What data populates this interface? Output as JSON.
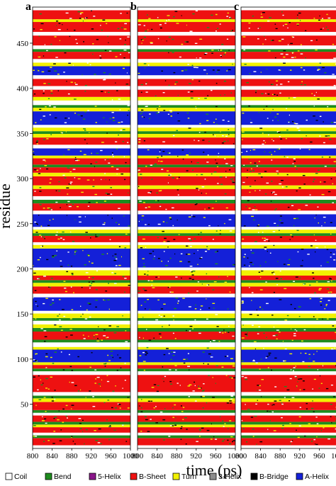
{
  "chart_data": {
    "type": "heatmap",
    "title": "",
    "xlabel": "time (ps)",
    "ylabel": "residue",
    "x_range": [
      800,
      1000
    ],
    "y_range": [
      1,
      490
    ],
    "x_ticks": [
      800,
      840,
      880,
      920,
      960,
      1000
    ],
    "y_ticks": [
      50,
      100,
      150,
      200,
      250,
      300,
      350,
      400,
      450
    ],
    "panels": [
      "a",
      "b",
      "c"
    ],
    "legend_position": "bottom",
    "legend": [
      {
        "name": "Coil",
        "color": "#ffffff"
      },
      {
        "name": "Bend",
        "color": "#1e8c1e"
      },
      {
        "name": "5-Helix",
        "color": "#8a168a"
      },
      {
        "name": "B-Sheet",
        "color": "#ee1111"
      },
      {
        "name": "Turn",
        "color": "#f2f200"
      },
      {
        "name": "3-Helix",
        "color": "#8c8c8c"
      },
      {
        "name": "B-Bridge",
        "color": "#000000"
      },
      {
        "name": "A-Helix",
        "color": "#1420d8"
      }
    ],
    "segments": [
      {
        "start": 1,
        "end": 4,
        "state": "Coil"
      },
      {
        "start": 5,
        "end": 12,
        "state": "B-Sheet"
      },
      {
        "start": 13,
        "end": 15,
        "state": "Bend"
      },
      {
        "start": 16,
        "end": 18,
        "state": "Coil"
      },
      {
        "start": 19,
        "end": 24,
        "state": "B-Sheet"
      },
      {
        "start": 25,
        "end": 27,
        "state": "Turn"
      },
      {
        "start": 28,
        "end": 30,
        "state": "Bend"
      },
      {
        "start": 31,
        "end": 37,
        "state": "B-Sheet"
      },
      {
        "start": 38,
        "end": 40,
        "state": "Coil"
      },
      {
        "start": 41,
        "end": 43,
        "state": "Bend"
      },
      {
        "start": 44,
        "end": 52,
        "state": "B-Sheet"
      },
      {
        "start": 53,
        "end": 56,
        "state": "Turn"
      },
      {
        "start": 57,
        "end": 59,
        "state": "Bend"
      },
      {
        "start": 60,
        "end": 63,
        "state": "Coil"
      },
      {
        "start": 64,
        "end": 82,
        "state": "B-Sheet"
      },
      {
        "start": 83,
        "end": 86,
        "state": "Coil"
      },
      {
        "start": 87,
        "end": 89,
        "state": "Bend"
      },
      {
        "start": 90,
        "end": 93,
        "state": "B-Sheet"
      },
      {
        "start": 94,
        "end": 96,
        "state": "Turn"
      },
      {
        "start": 97,
        "end": 110,
        "state": "A-Helix"
      },
      {
        "start": 111,
        "end": 113,
        "state": "Turn"
      },
      {
        "start": 114,
        "end": 118,
        "state": "Coil"
      },
      {
        "start": 119,
        "end": 121,
        "state": "Bend"
      },
      {
        "start": 122,
        "end": 130,
        "state": "B-Sheet"
      },
      {
        "start": 131,
        "end": 134,
        "state": "Bend"
      },
      {
        "start": 135,
        "end": 138,
        "state": "Turn"
      },
      {
        "start": 139,
        "end": 142,
        "state": "Coil"
      },
      {
        "start": 143,
        "end": 145,
        "state": "Bend"
      },
      {
        "start": 146,
        "end": 150,
        "state": "Turn"
      },
      {
        "start": 151,
        "end": 153,
        "state": "Coil"
      },
      {
        "start": 154,
        "end": 168,
        "state": "A-Helix"
      },
      {
        "start": 169,
        "end": 172,
        "state": "Coil"
      },
      {
        "start": 173,
        "end": 180,
        "state": "B-Sheet"
      },
      {
        "start": 181,
        "end": 184,
        "state": "Turn"
      },
      {
        "start": 185,
        "end": 187,
        "state": "Bend"
      },
      {
        "start": 188,
        "end": 192,
        "state": "B-Sheet"
      },
      {
        "start": 193,
        "end": 198,
        "state": "Turn"
      },
      {
        "start": 199,
        "end": 201,
        "state": "Coil"
      },
      {
        "start": 202,
        "end": 222,
        "state": "A-Helix"
      },
      {
        "start": 223,
        "end": 226,
        "state": "Turn"
      },
      {
        "start": 227,
        "end": 229,
        "state": "Coil"
      },
      {
        "start": 230,
        "end": 236,
        "state": "B-Sheet"
      },
      {
        "start": 237,
        "end": 239,
        "state": "Bend"
      },
      {
        "start": 240,
        "end": 243,
        "state": "Turn"
      },
      {
        "start": 244,
        "end": 246,
        "state": "Coil"
      },
      {
        "start": 247,
        "end": 260,
        "state": "A-Helix"
      },
      {
        "start": 261,
        "end": 264,
        "state": "Coil"
      },
      {
        "start": 265,
        "end": 272,
        "state": "B-Sheet"
      },
      {
        "start": 273,
        "end": 276,
        "state": "Bend"
      },
      {
        "start": 277,
        "end": 280,
        "state": "Coil"
      },
      {
        "start": 281,
        "end": 288,
        "state": "B-Sheet"
      },
      {
        "start": 289,
        "end": 292,
        "state": "Turn"
      },
      {
        "start": 293,
        "end": 302,
        "state": "B-Sheet"
      },
      {
        "start": 303,
        "end": 306,
        "state": "Turn"
      },
      {
        "start": 307,
        "end": 312,
        "state": "B-Sheet"
      },
      {
        "start": 313,
        "end": 315,
        "state": "Bend"
      },
      {
        "start": 316,
        "end": 322,
        "state": "B-Sheet"
      },
      {
        "start": 323,
        "end": 325,
        "state": "Turn"
      },
      {
        "start": 326,
        "end": 333,
        "state": "A-Helix"
      },
      {
        "start": 334,
        "end": 337,
        "state": "Coil"
      },
      {
        "start": 338,
        "end": 345,
        "state": "B-Sheet"
      },
      {
        "start": 346,
        "end": 349,
        "state": "Turn"
      },
      {
        "start": 350,
        "end": 352,
        "state": "Bend"
      },
      {
        "start": 353,
        "end": 356,
        "state": "Turn"
      },
      {
        "start": 357,
        "end": 359,
        "state": "Coil"
      },
      {
        "start": 360,
        "end": 374,
        "state": "A-Helix"
      },
      {
        "start": 375,
        "end": 378,
        "state": "Turn"
      },
      {
        "start": 379,
        "end": 381,
        "state": "Bend"
      },
      {
        "start": 382,
        "end": 386,
        "state": "Coil"
      },
      {
        "start": 387,
        "end": 390,
        "state": "Turn"
      },
      {
        "start": 391,
        "end": 398,
        "state": "B-Sheet"
      },
      {
        "start": 399,
        "end": 402,
        "state": "Coil"
      },
      {
        "start": 403,
        "end": 410,
        "state": "B-Sheet"
      },
      {
        "start": 411,
        "end": 414,
        "state": "Coil"
      },
      {
        "start": 415,
        "end": 424,
        "state": "A-Helix"
      },
      {
        "start": 425,
        "end": 428,
        "state": "Turn"
      },
      {
        "start": 429,
        "end": 432,
        "state": "Coil"
      },
      {
        "start": 433,
        "end": 440,
        "state": "B-Sheet"
      },
      {
        "start": 441,
        "end": 443,
        "state": "Bend"
      },
      {
        "start": 444,
        "end": 447,
        "state": "Coil"
      },
      {
        "start": 448,
        "end": 458,
        "state": "B-Sheet"
      },
      {
        "start": 459,
        "end": 462,
        "state": "Coil"
      },
      {
        "start": 463,
        "end": 473,
        "state": "B-Sheet"
      },
      {
        "start": 474,
        "end": 476,
        "state": "Turn"
      },
      {
        "start": 477,
        "end": 486,
        "state": "B-Sheet"
      },
      {
        "start": 487,
        "end": 490,
        "state": "Coil"
      }
    ]
  }
}
